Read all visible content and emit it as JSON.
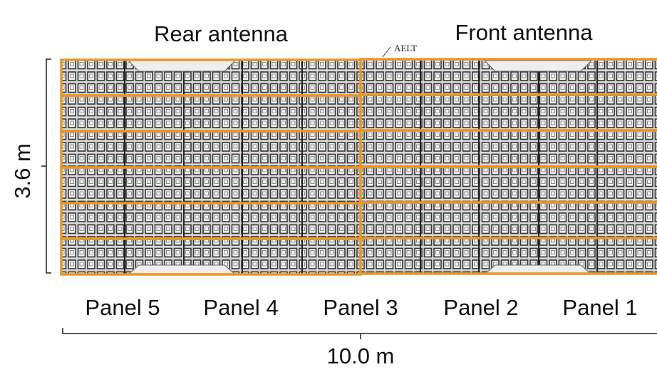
{
  "labels": {
    "rear": "Rear antenna",
    "front": "Front antenna",
    "aelt": "AELT",
    "height": "3.6 m",
    "width": "10.0 m"
  },
  "panels": [
    "Panel 5",
    "Panel 4",
    "Panel 3",
    "Panel 2",
    "Panel 1"
  ]
}
